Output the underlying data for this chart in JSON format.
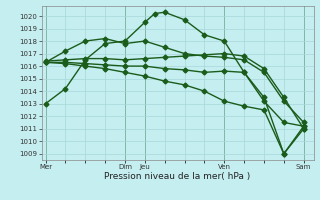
{
  "xlabel": "Pression niveau de la mer( hPa )",
  "background_color": "#c5eef0",
  "grid_color": "#a8d8da",
  "line_color": "#1a5c1a",
  "ylim": [
    1008.5,
    1020.8
  ],
  "yticks": [
    1009,
    1010,
    1011,
    1012,
    1013,
    1014,
    1015,
    1016,
    1017,
    1018,
    1019,
    1020
  ],
  "xlim": [
    -0.2,
    13.5
  ],
  "xtick_labels": [
    "Mer",
    "",
    "",
    "",
    "Dim",
    "Jeu",
    "",
    "",
    "",
    "Ven",
    "",
    "",
    "",
    "Sam"
  ],
  "xtick_positions": [
    0,
    1,
    2,
    3,
    4,
    5,
    6,
    7,
    8,
    9,
    10,
    11,
    12,
    13
  ],
  "lines": [
    {
      "x": [
        0,
        1,
        2,
        3,
        4,
        5,
        5.5,
        6,
        7,
        8,
        9,
        10,
        11,
        12,
        13
      ],
      "y": [
        1013.0,
        1014.2,
        1016.5,
        1017.8,
        1018.0,
        1019.5,
        1020.2,
        1020.3,
        1019.7,
        1018.5,
        1018.0,
        1015.5,
        1013.2,
        1011.5,
        1011.2
      ],
      "marker": "D",
      "markersize": 2.5,
      "linewidth": 1.0
    },
    {
      "x": [
        0,
        1,
        2,
        3,
        4,
        5,
        6,
        7,
        8,
        9,
        10,
        11,
        12,
        13
      ],
      "y": [
        1016.3,
        1017.2,
        1018.0,
        1018.2,
        1017.8,
        1018.0,
        1017.5,
        1017.0,
        1016.8,
        1016.7,
        1016.5,
        1015.5,
        1013.2,
        1011.5
      ],
      "marker": "D",
      "markersize": 2.5,
      "linewidth": 1.0
    },
    {
      "x": [
        0,
        1,
        2,
        3,
        4,
        5,
        6,
        7,
        8,
        9,
        10,
        11,
        12,
        13
      ],
      "y": [
        1016.4,
        1016.5,
        1016.6,
        1016.6,
        1016.5,
        1016.6,
        1016.7,
        1016.8,
        1016.9,
        1017.0,
        1016.8,
        1015.8,
        1013.5,
        1011.0
      ],
      "marker": "D",
      "markersize": 2.5,
      "linewidth": 1.0
    },
    {
      "x": [
        0,
        1,
        2,
        3,
        4,
        5,
        6,
        7,
        8,
        9,
        10,
        11,
        12,
        13
      ],
      "y": [
        1016.3,
        1016.3,
        1016.2,
        1016.1,
        1016.0,
        1016.0,
        1015.8,
        1015.7,
        1015.5,
        1015.6,
        1015.5,
        1013.5,
        1009.0,
        1011.2
      ],
      "marker": "D",
      "markersize": 2.5,
      "linewidth": 1.0
    },
    {
      "x": [
        0,
        1,
        2,
        3,
        4,
        5,
        6,
        7,
        8,
        9,
        10,
        11,
        12,
        13
      ],
      "y": [
        1016.3,
        1016.2,
        1016.0,
        1015.8,
        1015.5,
        1015.2,
        1014.8,
        1014.5,
        1014.0,
        1013.2,
        1012.8,
        1012.5,
        1009.0,
        1011.0
      ],
      "marker": "D",
      "markersize": 2.5,
      "linewidth": 1.0
    }
  ],
  "vlines": [
    0,
    4,
    5,
    9,
    13
  ],
  "vline_color": "#2d6a2d",
  "tick_fontsize": 5.0,
  "label_fontsize": 6.5
}
